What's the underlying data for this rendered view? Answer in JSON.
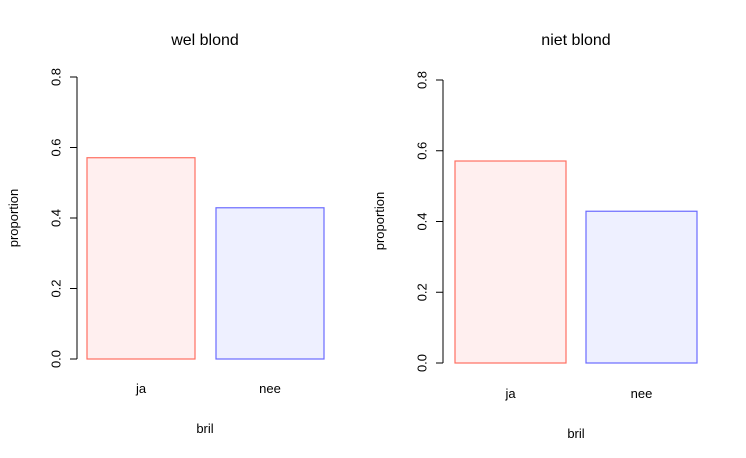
{
  "chart_data": [
    {
      "type": "bar",
      "title": "wel blond",
      "xlabel": "bril",
      "ylabel": "proportion",
      "categories": [
        "ja",
        "nee"
      ],
      "values": [
        0.571,
        0.429
      ],
      "ylim": [
        0,
        0.8
      ],
      "yticks": [
        "0.0",
        "0.2",
        "0.4",
        "0.6",
        "0.8"
      ],
      "grid": false,
      "legend": "none",
      "colors": {
        "ja": {
          "stroke": "#ff6f61",
          "fill": "#ffefef"
        },
        "nee": {
          "stroke": "#6a6aff",
          "fill": "#eef0ff"
        }
      }
    },
    {
      "type": "bar",
      "title": "niet blond",
      "xlabel": "bril",
      "ylabel": "proportion",
      "categories": [
        "ja",
        "nee"
      ],
      "values": [
        0.571,
        0.429
      ],
      "ylim": [
        0,
        0.8
      ],
      "yticks": [
        "0.0",
        "0.2",
        "0.4",
        "0.6",
        "0.8"
      ],
      "grid": false,
      "legend": "none",
      "colors": {
        "ja": {
          "stroke": "#ff6f61",
          "fill": "#ffefef"
        },
        "nee": {
          "stroke": "#6a6aff",
          "fill": "#eef0ff"
        }
      }
    }
  ]
}
